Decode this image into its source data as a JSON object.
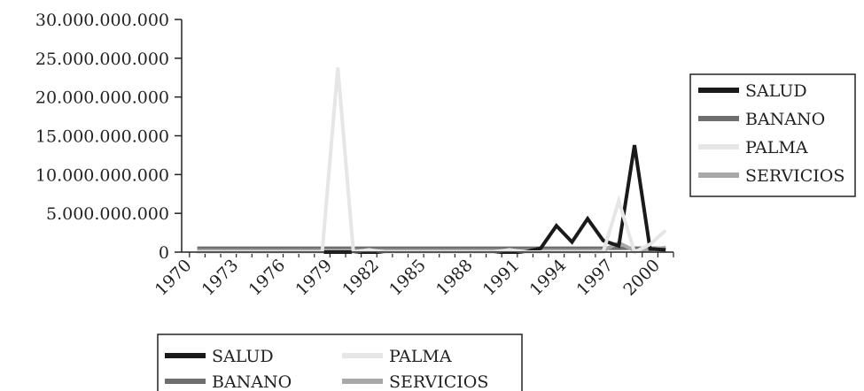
{
  "chart_data": {
    "type": "line",
    "title": "",
    "xlabel": "",
    "ylabel": "",
    "x": [
      1971,
      1972,
      1973,
      1974,
      1975,
      1976,
      1977,
      1978,
      1979,
      1980,
      1981,
      1982,
      1983,
      1984,
      1985,
      1986,
      1987,
      1988,
      1989,
      1990,
      1991,
      1992,
      1993,
      1994,
      1995,
      1996,
      1997,
      1998,
      1999,
      2000,
      2001
    ],
    "x_tick_labels": [
      "1970",
      "1973",
      "1976",
      "1979",
      "1982",
      "1985",
      "1988",
      "1991",
      "1994",
      "1997",
      "2000"
    ],
    "x_tick_values": [
      1970,
      1973,
      1976,
      1979,
      1982,
      1985,
      1988,
      1991,
      1994,
      1997,
      2000
    ],
    "y_tick_labels": [
      "0",
      "5.000.000.000",
      "10.000.000.000",
      "15.000.000.000",
      "20.000.000.000",
      "25.000.000.000",
      "30.000.000.000"
    ],
    "y_tick_values": [
      0,
      5000000000,
      10000000000,
      15000000000,
      20000000000,
      25000000000,
      30000000000
    ],
    "ylim": [
      0,
      30000000000
    ],
    "grid": false,
    "series": [
      {
        "name": "SALUD",
        "color": "#1a1a1a",
        "values": [
          0,
          0,
          0,
          0,
          0,
          0,
          0,
          0,
          0,
          0,
          0,
          0,
          0,
          0,
          0,
          0,
          0,
          0,
          0,
          0,
          0,
          0,
          500000000,
          3400000000,
          1300000000,
          4300000000,
          1500000000,
          800000000,
          13800000000,
          400000000,
          300000000
        ]
      },
      {
        "name": "BANANO",
        "color": "#6e6e6e",
        "values": [
          500000000,
          500000000,
          500000000,
          500000000,
          500000000,
          500000000,
          500000000,
          500000000,
          500000000,
          500000000,
          500000000,
          500000000,
          500000000,
          500000000,
          500000000,
          500000000,
          500000000,
          500000000,
          500000000,
          500000000,
          500000000,
          500000000,
          500000000,
          500000000,
          500000000,
          500000000,
          500000000,
          500000000,
          500000000,
          500000000,
          500000000
        ]
      },
      {
        "name": "PALMA",
        "color": "#e6e6e6",
        "values": [
          0,
          0,
          0,
          0,
          0,
          0,
          0,
          0,
          0,
          23800000000,
          0,
          300000000,
          0,
          0,
          0,
          0,
          0,
          0,
          0,
          0,
          300000000,
          0,
          0,
          0,
          0,
          0,
          0,
          6600000000,
          0,
          1000000000,
          2800000000
        ]
      },
      {
        "name": "SERVICIOS",
        "color": "#a8a8a8",
        "values": [
          200000000,
          200000000,
          200000000,
          200000000,
          200000000,
          200000000,
          200000000,
          200000000,
          200000000,
          200000000,
          200000000,
          200000000,
          200000000,
          200000000,
          200000000,
          200000000,
          200000000,
          200000000,
          200000000,
          200000000,
          200000000,
          200000000,
          200000000,
          200000000,
          200000000,
          200000000,
          200000000,
          1200000000,
          200000000,
          300000000,
          600000000
        ]
      }
    ]
  }
}
